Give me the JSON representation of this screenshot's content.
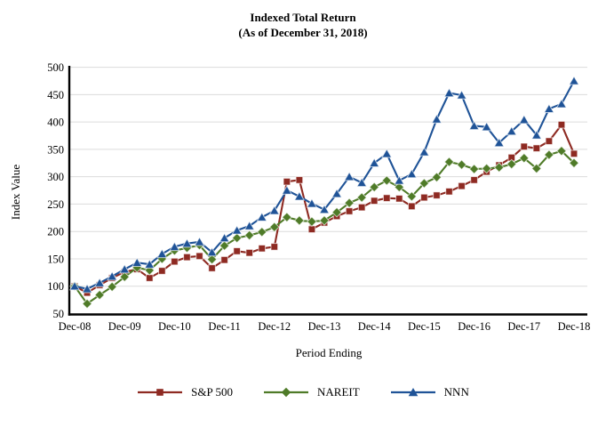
{
  "chart_data": {
    "type": "line",
    "title_line1": "Indexed Total Return",
    "title_line2": "(As of December 31, 2018)",
    "xlabel": "Period Ending",
    "ylabel": "Index Value",
    "ylim": [
      50,
      500
    ],
    "y_ticks": [
      50,
      100,
      150,
      200,
      250,
      300,
      350,
      400,
      450,
      500
    ],
    "grid": true,
    "legend_position": "bottom",
    "x": [
      "Dec-08",
      "Mar-09",
      "Jun-09",
      "Sep-09",
      "Dec-09",
      "Mar-10",
      "Jun-10",
      "Sep-10",
      "Dec-10",
      "Mar-11",
      "Jun-11",
      "Sep-11",
      "Dec-11",
      "Mar-12",
      "Jun-12",
      "Sep-12",
      "Dec-12",
      "Mar-13",
      "Jun-13",
      "Sep-13",
      "Dec-13",
      "Mar-14",
      "Jun-14",
      "Sep-14",
      "Dec-14",
      "Mar-15",
      "Jun-15",
      "Sep-15",
      "Dec-15",
      "Mar-16",
      "Jun-16",
      "Sep-16",
      "Dec-16",
      "Mar-17",
      "Jun-17",
      "Sep-17",
      "Dec-17",
      "Mar-18",
      "Jun-18",
      "Sep-18",
      "Dec-18"
    ],
    "x_tick_labels": [
      "Dec-08",
      "Dec-09",
      "Dec-10",
      "Dec-11",
      "Dec-12",
      "Dec-13",
      "Dec-14",
      "Dec-15",
      "Dec-16",
      "Dec-17",
      "Dec-18"
    ],
    "series": [
      {
        "name": "S&P 500",
        "color": "#8E2A22",
        "marker": "square",
        "values": [
          100,
          88,
          102,
          115,
          126,
          131,
          115,
          128,
          145,
          153,
          155,
          133,
          148,
          164,
          161,
          169,
          172,
          291,
          294,
          204,
          216,
          228,
          237,
          244,
          256,
          261,
          260,
          246,
          262,
          266,
          273,
          283,
          294,
          309,
          321,
          335,
          355,
          352,
          365,
          395,
          342
        ]
      },
      {
        "name": "NAREIT",
        "color": "#4F7B28",
        "marker": "diamond",
        "values": [
          100,
          68,
          84,
          99,
          117,
          134,
          129,
          150,
          165,
          170,
          175,
          149,
          174,
          188,
          193,
          199,
          208,
          226,
          220,
          218,
          220,
          235,
          252,
          262,
          281,
          293,
          281,
          264,
          288,
          299,
          327,
          322,
          314,
          315,
          317,
          323,
          334,
          315,
          340,
          347,
          325
        ]
      },
      {
        "name": "NNN",
        "color": "#1F5397",
        "marker": "triangle",
        "values": [
          100,
          95,
          106,
          118,
          131,
          143,
          140,
          159,
          172,
          178,
          181,
          162,
          188,
          202,
          210,
          226,
          238,
          275,
          264,
          251,
          240,
          269,
          300,
          289,
          325,
          342,
          293,
          305,
          345,
          405,
          453,
          449,
          393,
          391,
          362,
          383,
          404,
          376,
          424,
          433,
          475
        ]
      }
    ],
    "styles": {
      "gridline_color": "#DCDCDC",
      "axis_color": "#000000",
      "background": "#FFFFFF"
    }
  }
}
